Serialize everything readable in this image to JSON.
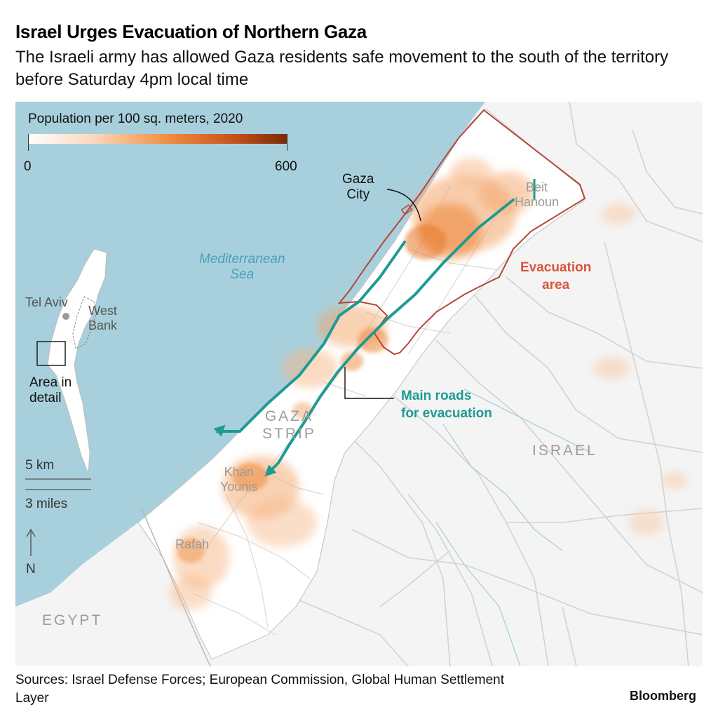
{
  "header": {
    "title": "Israel Urges Evacuation of Northern Gaza",
    "subtitle": "The Israeli army has allowed Gaza residents safe movement to the south of the territory before Saturday 4pm local time"
  },
  "legend": {
    "title": "Population per 100 sq. meters, 2020",
    "min_label": "0",
    "max_label": "600",
    "min": 0,
    "max": 600,
    "colors": [
      "#ffffff",
      "#fbd9bd",
      "#f08a3e",
      "#c4501a",
      "#7a2a06"
    ]
  },
  "places": {
    "gaza_city": [
      "Gaza",
      "City"
    ],
    "beit_hanoun": [
      "Beit",
      "Hanoun"
    ],
    "gaza_strip": [
      "GAZA",
      "STRIP"
    ],
    "khan_younis": [
      "Khan",
      "Younis"
    ],
    "rafah": "Rafah",
    "israel": "ISRAEL",
    "egypt": "EGYPT",
    "sea": [
      "Mediterranean",
      "Sea"
    ]
  },
  "inset": {
    "tel_aviv": "Tel Aviv",
    "west_bank": [
      "West",
      "Bank"
    ],
    "area_in_detail": [
      "Area in",
      "detail"
    ]
  },
  "annotations": {
    "evacuation_area": [
      "Evacuation",
      "area"
    ],
    "main_roads": [
      "Main roads",
      "for evacuation"
    ]
  },
  "scale": {
    "km": "5 km",
    "miles": "3 miles",
    "north": "N"
  },
  "colors": {
    "sea": "#a8d0dc",
    "land": "#f4f4f4",
    "evacuation_border": "#b4473a",
    "roads_evacuation": "#1e9b93",
    "population": "#f08a3e"
  },
  "footer": {
    "sources": "Sources: Israel Defense Forces; European Commission, Global Human Settlement Layer",
    "brand": "Bloomberg"
  }
}
